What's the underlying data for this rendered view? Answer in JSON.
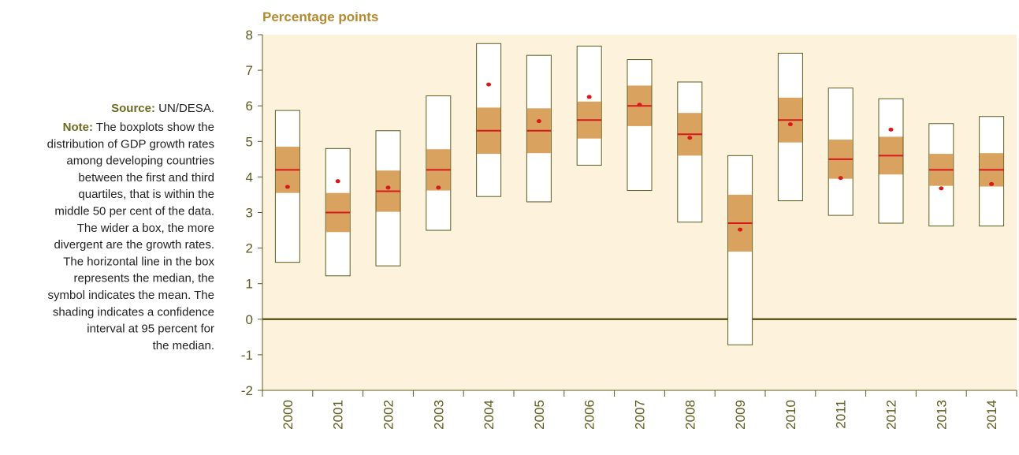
{
  "chart_data": {
    "type": "box",
    "y_axis_label": "Percentage points",
    "source_label": "Source:",
    "source": "UN/DESA.",
    "note_label": "Note:",
    "note_lines": [
      "The boxplots show the",
      "distribution of GDP growth rates",
      "among developing countries",
      "between the first and third",
      "quartiles, that is within the",
      "middle 50 per cent of the data.",
      "The wider a box, the more",
      "divergent are the growth rates.",
      "The horizontal line in the box",
      "represents the median, the",
      "symbol indicates the mean. The",
      "shading indicates a confidence",
      "interval at 95 percent for",
      "the median."
    ],
    "categories": [
      "2000",
      "2001",
      "2002",
      "2003",
      "2004",
      "2005",
      "2006",
      "2007",
      "2008",
      "2009",
      "2010",
      "2011",
      "2012",
      "2013",
      "2014"
    ],
    "q1": [
      1.6,
      1.22,
      1.5,
      2.5,
      3.45,
      3.3,
      4.33,
      3.62,
      2.73,
      -0.72,
      3.33,
      2.92,
      2.7,
      2.62,
      2.62
    ],
    "q3": [
      5.87,
      4.8,
      5.3,
      6.28,
      7.75,
      7.42,
      7.68,
      7.3,
      6.67,
      4.6,
      7.48,
      6.5,
      6.2,
      5.5,
      5.7
    ],
    "ci_low": [
      3.55,
      2.45,
      3.02,
      3.62,
      4.65,
      4.67,
      5.08,
      5.43,
      4.6,
      1.9,
      4.97,
      3.95,
      4.07,
      3.75,
      3.73
    ],
    "ci_high": [
      4.85,
      3.55,
      4.18,
      4.78,
      5.95,
      5.93,
      6.12,
      6.57,
      5.8,
      3.5,
      6.23,
      5.05,
      5.13,
      4.65,
      4.67
    ],
    "median": [
      4.2,
      3.0,
      3.6,
      4.2,
      5.3,
      5.3,
      5.6,
      6.0,
      5.2,
      2.7,
      5.6,
      4.5,
      4.6,
      4.2,
      4.2
    ],
    "mean": [
      3.72,
      3.88,
      3.7,
      3.7,
      6.6,
      5.57,
      6.25,
      6.03,
      5.1,
      2.52,
      5.48,
      3.97,
      5.33,
      3.68,
      3.8
    ],
    "box_color": "#ffffff",
    "ci_color": "#d9a25e",
    "median_color": "#d7191c",
    "mean_color": "#d7191c",
    "ylim": [
      -2,
      8
    ],
    "yticks": [
      -2,
      -1,
      0,
      1,
      2,
      3,
      4,
      5,
      6,
      7,
      8
    ]
  }
}
